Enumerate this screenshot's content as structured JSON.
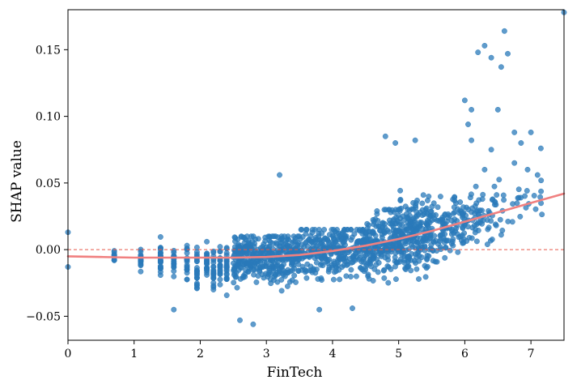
{
  "chart_data": {
    "type": "scatter",
    "title": "",
    "xlabel": "FinTech",
    "ylabel": "SHAP value",
    "xlim": [
      0,
      7.5
    ],
    "ylim": [
      -0.068,
      0.18
    ],
    "xticks": [
      0,
      1,
      2,
      3,
      4,
      5,
      6,
      7
    ],
    "xtick_labels": [
      "0",
      "1",
      "2",
      "3",
      "4",
      "5",
      "6",
      "7"
    ],
    "yticks": [
      -0.05,
      0.0,
      0.05,
      0.1,
      0.15
    ],
    "ytick_labels": [
      "−0.05",
      "0.00",
      "0.05",
      "0.10",
      "0.15"
    ],
    "grid": false,
    "colors": {
      "points": "#2a7ab9",
      "trend": "#f08080",
      "reference": "#e8584a"
    },
    "reference_line": {
      "y": 0.0,
      "style": "dashed"
    },
    "trend_line": {
      "x": [
        0,
        0.5,
        1,
        1.5,
        2,
        2.5,
        3,
        3.5,
        4,
        4.5,
        5,
        5.5,
        6,
        6.5,
        7,
        7.5
      ],
      "y": [
        -0.005,
        -0.0055,
        -0.006,
        -0.006,
        -0.006,
        -0.006,
        -0.0055,
        -0.004,
        -0.001,
        0.003,
        0.008,
        0.014,
        0.021,
        0.028,
        0.035,
        0.042
      ]
    },
    "notable_points": [
      {
        "x": 0,
        "y": 0.013
      },
      {
        "x": 0,
        "y": -0.013
      },
      {
        "x": 7.5,
        "y": 0.178
      },
      {
        "x": 6.6,
        "y": 0.164
      },
      {
        "x": 6.3,
        "y": 0.153
      },
      {
        "x": 6.2,
        "y": 0.148
      },
      {
        "x": 6.4,
        "y": 0.144
      },
      {
        "x": 6.65,
        "y": 0.147
      },
      {
        "x": 6.55,
        "y": 0.137
      },
      {
        "x": 6.0,
        "y": 0.112
      },
      {
        "x": 6.1,
        "y": 0.105
      },
      {
        "x": 6.5,
        "y": 0.105
      },
      {
        "x": 4.8,
        "y": 0.085
      },
      {
        "x": 5.25,
        "y": 0.082
      },
      {
        "x": 4.95,
        "y": 0.08
      },
      {
        "x": 6.05,
        "y": 0.094
      },
      {
        "x": 6.75,
        "y": 0.088
      },
      {
        "x": 7.0,
        "y": 0.088
      },
      {
        "x": 6.1,
        "y": 0.082
      },
      {
        "x": 6.85,
        "y": 0.08
      },
      {
        "x": 7.15,
        "y": 0.076
      },
      {
        "x": 6.4,
        "y": 0.075
      },
      {
        "x": 6.75,
        "y": 0.065
      },
      {
        "x": 6.95,
        "y": 0.06
      },
      {
        "x": 3.2,
        "y": 0.056
      },
      {
        "x": 2.8,
        "y": -0.056
      },
      {
        "x": 2.6,
        "y": -0.053
      },
      {
        "x": 1.6,
        "y": -0.045
      },
      {
        "x": 4.3,
        "y": -0.044
      },
      {
        "x": 3.8,
        "y": -0.045
      },
      {
        "x": 7.1,
        "y": 0.056
      },
      {
        "x": 6.3,
        "y": 0.06
      }
    ],
    "cloud_bands": [
      {
        "x_from": 0.7,
        "x_to": 0.7,
        "y_min": -0.017,
        "y_max": 0.001,
        "n": 14
      },
      {
        "x_from": 1.1,
        "x_to": 1.1,
        "y_min": -0.024,
        "y_max": 0.005,
        "n": 22
      },
      {
        "x_from": 1.4,
        "x_to": 1.4,
        "y_min": -0.03,
        "y_max": 0.013,
        "n": 28
      },
      {
        "x_from": 1.6,
        "x_to": 1.6,
        "y_min": -0.028,
        "y_max": 0.004,
        "n": 22
      },
      {
        "x_from": 1.8,
        "x_to": 1.8,
        "y_min": -0.03,
        "y_max": 0.006,
        "n": 22
      },
      {
        "x_from": 1.95,
        "x_to": 1.95,
        "y_min": -0.036,
        "y_max": 0.006,
        "n": 24
      },
      {
        "x_from": 2.1,
        "x_to": 2.1,
        "y_min": -0.03,
        "y_max": 0.006,
        "n": 22
      },
      {
        "x_from": 2.2,
        "x_to": 2.2,
        "y_min": -0.04,
        "y_max": 0.005,
        "n": 24
      },
      {
        "x_from": 2.3,
        "x_to": 2.3,
        "y_min": -0.035,
        "y_max": 0.004,
        "n": 22
      },
      {
        "x_from": 2.4,
        "x_to": 2.4,
        "y_min": -0.041,
        "y_max": 0.007,
        "n": 26
      },
      {
        "x_from": 2.5,
        "x_to": 3.5,
        "y_min": -0.045,
        "y_max": 0.01,
        "n": 380
      },
      {
        "x_from": 3.5,
        "x_to": 4.5,
        "y_min": -0.045,
        "y_max": 0.015,
        "n": 300
      },
      {
        "x_from": 4.5,
        "x_to": 5.0,
        "y_min": -0.04,
        "y_max": 0.03,
        "n": 200
      },
      {
        "x_from": 5.0,
        "x_to": 5.5,
        "y_min": -0.035,
        "y_max": 0.045,
        "n": 220
      },
      {
        "x_from": 5.5,
        "x_to": 6.0,
        "y_min": -0.01,
        "y_max": 0.055,
        "n": 110
      },
      {
        "x_from": 6.0,
        "x_to": 6.6,
        "y_min": 0.0,
        "y_max": 0.06,
        "n": 70
      },
      {
        "x_from": 6.6,
        "x_to": 7.2,
        "y_min": 0.02,
        "y_max": 0.06,
        "n": 20
      }
    ]
  }
}
